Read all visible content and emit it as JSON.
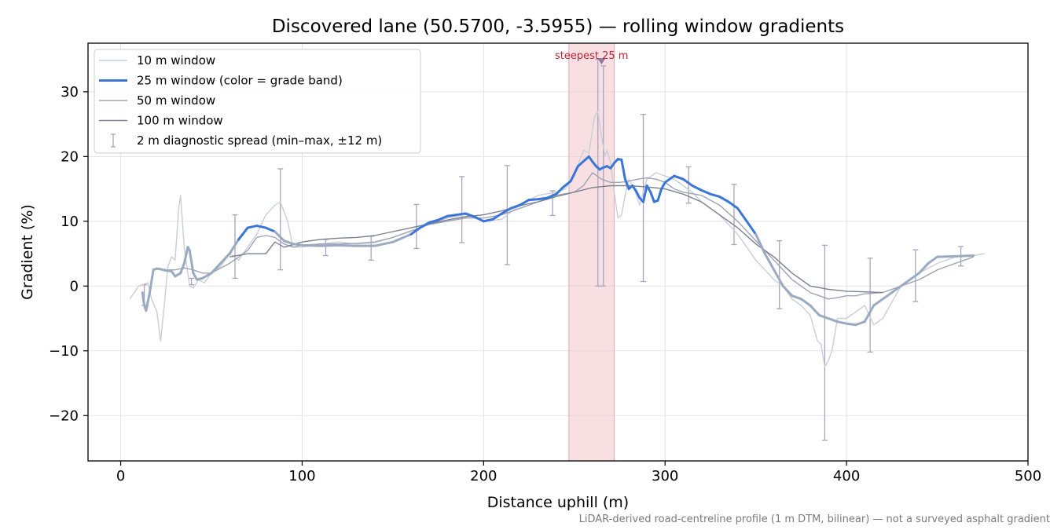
{
  "chart_data": {
    "type": "line",
    "title": "Discovered lane (50.5700, -3.5955) — rolling window gradients",
    "xlabel": "Distance uphill (m)",
    "ylabel": "Gradient (%)",
    "xlim": [
      -18,
      500
    ],
    "ylim": [
      -27,
      37.5
    ],
    "xticks": [
      0,
      100,
      200,
      300,
      400,
      500
    ],
    "yticks": [
      -20,
      -10,
      0,
      10,
      20,
      30
    ],
    "xtick_labels": [
      "0",
      "100",
      "200",
      "300",
      "400",
      "500"
    ],
    "ytick_labels": [
      "−20",
      "−10",
      "0",
      "10",
      "20",
      "30"
    ],
    "grid": true,
    "legend_position": "top-left",
    "footnote": "LiDAR-derived road-centreline profile (1 m DTM, bilinear) — not a surveyed asphalt gradient",
    "highlight": {
      "x_start": 247,
      "x_end": 272,
      "label": "steepest 25 m",
      "marker": {
        "x": 265,
        "y": 34.7
      },
      "color": "#f3c9cd"
    },
    "series": [
      {
        "name": "10 m window",
        "color": "#c9ced8",
        "x": [
          5,
          10,
          15,
          17,
          20,
          22,
          24,
          26,
          28,
          30,
          32,
          33,
          35,
          38,
          40,
          43,
          46,
          50,
          55,
          60,
          65,
          70,
          75,
          80,
          85,
          88,
          92,
          95,
          100,
          110,
          120,
          130,
          140,
          150,
          160,
          170,
          180,
          190,
          200,
          210,
          220,
          230,
          240,
          245,
          250,
          255,
          258,
          261,
          263,
          265,
          267,
          268,
          270,
          272,
          274,
          276,
          278,
          280,
          283,
          286,
          290,
          295,
          300,
          305,
          310,
          315,
          320,
          330,
          340,
          350,
          360,
          365,
          370,
          375,
          380,
          384,
          386,
          388,
          390,
          392,
          395,
          400,
          405,
          410,
          415,
          420,
          430,
          440,
          450,
          460,
          470,
          476
        ],
        "y": [
          -2,
          0,
          0.5,
          -2,
          -4,
          -8.5,
          -3,
          3,
          4.5,
          4,
          12,
          14,
          6,
          0,
          -0.3,
          1,
          0.5,
          2,
          3,
          5,
          4,
          6,
          8,
          11,
          12.5,
          13,
          10,
          6,
          6,
          6.5,
          6.8,
          6.5,
          6.7,
          7.5,
          8.5,
          9.5,
          10.5,
          11,
          10,
          10.3,
          12.5,
          14,
          14.5,
          15,
          17,
          21,
          20.5,
          26,
          27,
          23,
          20,
          21,
          19,
          14.5,
          10.5,
          11,
          14,
          16.5,
          15,
          12.5,
          16.5,
          17.5,
          17,
          16.5,
          15.5,
          14.5,
          13,
          11,
          8,
          4,
          1,
          0,
          -2,
          -3,
          -4.5,
          -8.5,
          -9,
          -12.5,
          -11.5,
          -10,
          -5,
          -5,
          -4,
          -3,
          -6,
          -5,
          0,
          2,
          3.5,
          4.5,
          4.7,
          5
        ]
      },
      {
        "name": "25 m window (color = grade band)",
        "color": "#3a76d8",
        "color_low": "#9aaac0",
        "band_threshold": 8,
        "x": [
          12,
          13,
          14,
          16,
          18,
          20,
          22,
          25,
          28,
          30,
          33,
          35,
          37,
          38,
          40,
          42,
          45,
          50,
          55,
          60,
          65,
          70,
          75,
          80,
          85,
          90,
          95,
          100,
          110,
          120,
          130,
          140,
          150,
          160,
          165,
          170,
          175,
          180,
          185,
          190,
          195,
          200,
          205,
          210,
          215,
          220,
          225,
          230,
          235,
          240,
          244,
          248,
          252,
          256,
          258,
          260,
          262,
          264,
          266,
          268,
          270,
          272,
          274,
          276,
          278,
          280,
          282,
          284,
          286,
          288,
          290,
          292,
          294,
          296,
          298,
          300,
          305,
          310,
          315,
          320,
          325,
          330,
          335,
          340,
          345,
          350,
          355,
          360,
          365,
          370,
          375,
          380,
          385,
          390,
          395,
          400,
          405,
          410,
          415,
          420,
          425,
          430,
          435,
          440,
          445,
          450,
          460,
          470
        ],
        "y": [
          -1,
          -3,
          -3.8,
          -1,
          2.5,
          2.7,
          2.6,
          2.4,
          2.3,
          1.5,
          2,
          3.5,
          6,
          5.5,
          2,
          1,
          1.2,
          2,
          3.5,
          5,
          7.2,
          9,
          9.3,
          9,
          8.4,
          7,
          6.5,
          6.3,
          6.2,
          6.3,
          6.2,
          6.2,
          6.8,
          8,
          9,
          9.8,
          10.2,
          10.8,
          11,
          11.2,
          10.7,
          10,
          10.3,
          11.2,
          12,
          12.5,
          13.3,
          13.4,
          13.6,
          14.2,
          15.3,
          16.2,
          18.5,
          19.5,
          20,
          19.2,
          18.5,
          18,
          18.3,
          18.5,
          18.2,
          19,
          19.6,
          19.5,
          16.5,
          15,
          15.5,
          14.7,
          13.6,
          13,
          15.5,
          14.5,
          13,
          13.2,
          15,
          16,
          17,
          16.5,
          15.5,
          14.8,
          14.2,
          13.8,
          13,
          12,
          10,
          8,
          5,
          2.5,
          0,
          -1.5,
          -2,
          -3,
          -4.5,
          -5,
          -5.5,
          -5.8,
          -6,
          -5.5,
          -3,
          -2,
          -1,
          0,
          1,
          2,
          3.5,
          4.5,
          4.6,
          4.7
        ]
      },
      {
        "name": "50 m window",
        "color": "#9ea4b4",
        "x": [
          26,
          30,
          35,
          40,
          45,
          50,
          60,
          70,
          75,
          80,
          85,
          90,
          95,
          100,
          110,
          120,
          130,
          140,
          150,
          160,
          170,
          180,
          190,
          200,
          210,
          220,
          230,
          240,
          250,
          255,
          260,
          265,
          270,
          275,
          280,
          285,
          290,
          295,
          300,
          305,
          310,
          320,
          330,
          340,
          350,
          360,
          370,
          380,
          385,
          390,
          395,
          400,
          405,
          410,
          420,
          430,
          440,
          450,
          460,
          470
        ],
        "y": [
          2.5,
          2.5,
          2.8,
          2.5,
          2,
          2,
          3.5,
          5.5,
          7.5,
          7.8,
          7.5,
          6.5,
          6,
          6.3,
          6.5,
          6.5,
          6.6,
          6.8,
          7.5,
          8.5,
          9.5,
          10,
          10.5,
          10.5,
          11,
          12,
          13,
          14,
          14.5,
          15.5,
          17.5,
          16.5,
          16,
          16,
          16.2,
          16.5,
          16.7,
          16.5,
          16,
          15,
          14.5,
          14,
          12.5,
          10,
          7,
          4,
          1,
          -1,
          -1.5,
          -2,
          -1.8,
          -1.5,
          -1.5,
          -1.2,
          -1,
          0,
          1,
          2.5,
          3.5,
          4.5
        ]
      },
      {
        "name": "100 m window",
        "color": "#7c8190",
        "x": [
          60,
          70,
          80,
          85,
          90,
          100,
          110,
          120,
          130,
          140,
          150,
          160,
          170,
          180,
          190,
          200,
          210,
          220,
          230,
          240,
          250,
          260,
          270,
          280,
          290,
          300,
          310,
          320,
          330,
          340,
          350,
          360,
          370,
          380,
          390,
          400,
          410,
          420
        ],
        "y": [
          4.5,
          5,
          5,
          6.8,
          6,
          6.8,
          7.2,
          7.4,
          7.5,
          7.8,
          8.4,
          9,
          9.6,
          10.2,
          10.7,
          11,
          11.6,
          12.4,
          13,
          13.8,
          14.5,
          15.2,
          15.5,
          15.5,
          15.3,
          15,
          14.2,
          13,
          11,
          9,
          6.5,
          4.5,
          2,
          0,
          -0.5,
          -0.8,
          -0.9,
          -1
        ]
      }
    ],
    "error_bars": {
      "name": "2 m diagnostic spread (min–max, ±12 m)",
      "color": "#a9a3c0",
      "points": [
        {
          "x": 13,
          "low": -3,
          "high": 0.2
        },
        {
          "x": 39,
          "low": 0.2,
          "high": 1.2
        },
        {
          "x": 63,
          "low": 1.2,
          "high": 11
        },
        {
          "x": 88,
          "low": 2.5,
          "high": 18.1
        },
        {
          "x": 113,
          "low": 4.7,
          "high": 7.2
        },
        {
          "x": 138,
          "low": 4,
          "high": 7.7
        },
        {
          "x": 163,
          "low": 5.8,
          "high": 12.6
        },
        {
          "x": 188,
          "low": 6.7,
          "high": 16.9
        },
        {
          "x": 213,
          "low": 3.3,
          "high": 18.6
        },
        {
          "x": 238,
          "low": 10.9,
          "high": 14.7
        },
        {
          "x": 263,
          "low": 0,
          "high": 35
        },
        {
          "x": 266,
          "low": 0,
          "high": 34
        },
        {
          "x": 288,
          "low": 0.7,
          "high": 26.5
        },
        {
          "x": 313,
          "low": 12.8,
          "high": 18.4
        },
        {
          "x": 338,
          "low": 6.4,
          "high": 15.7
        },
        {
          "x": 363,
          "low": -3.5,
          "high": 7
        },
        {
          "x": 388,
          "low": -23.8,
          "high": 6.3
        },
        {
          "x": 413,
          "low": -10.2,
          "high": 4.3
        },
        {
          "x": 438,
          "low": -2.4,
          "high": 5.6
        },
        {
          "x": 463,
          "low": 3.1,
          "high": 6.1
        }
      ]
    }
  }
}
